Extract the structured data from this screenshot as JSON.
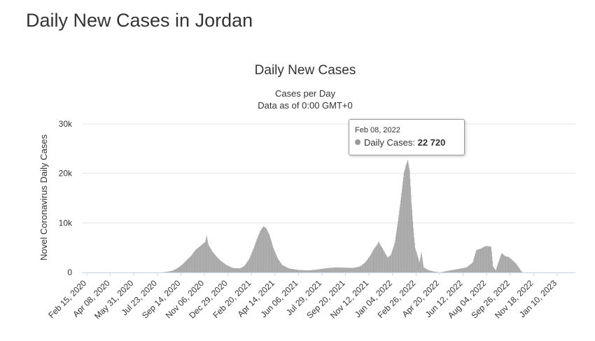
{
  "page": {
    "title": "Daily New Cases in Jordan"
  },
  "colors": {
    "bar": "#999999",
    "grid": "#e6e6e6",
    "axis": "#ccd6eb",
    "text": "#333333",
    "label": "#666666"
  },
  "tooltip": {
    "date": "Feb 08, 2022",
    "series": "Daily Cases:",
    "value": "22 720"
  },
  "chart_data": {
    "type": "bar",
    "title": "Daily New Cases",
    "subtitle_lines": [
      "Cases per Day",
      "Data as of 0:00 GMT+0"
    ],
    "ylabel": "Novel Coronavirus Daily Cases",
    "xlabel": "",
    "ylim": [
      0,
      30000
    ],
    "yticks": [
      0,
      10000,
      20000,
      30000
    ],
    "ytick_labels": [
      "0",
      "10k",
      "20k",
      "30k"
    ],
    "grid": true,
    "legend": "none",
    "x_range": [
      "2020-02-15",
      "2023-02-15"
    ],
    "xtick_labels": [
      "Feb 15, 2020",
      "Apr 08, 2020",
      "May 31, 2020",
      "Jul 23, 2020",
      "Sep 14, 2020",
      "Nov 06, 2020",
      "Dec 29, 2020",
      "Feb 20, 2021",
      "Apr 14, 2021",
      "Jun 06, 2021",
      "Jul 29, 2021",
      "Sep 20, 2021",
      "Nov 12, 2021",
      "Jan 04, 2022",
      "Feb 26, 2022",
      "Apr 20, 2022",
      "Jun 12, 2022",
      "Aug 04, 2022",
      "Sep 26, 2022",
      "Nov 18, 2022",
      "Jan 10, 2023"
    ],
    "series": [
      {
        "name": "Daily Cases",
        "points": [
          [
            "2020-08-15",
            50
          ],
          [
            "2020-08-25",
            150
          ],
          [
            "2020-09-05",
            400
          ],
          [
            "2020-09-15",
            900
          ],
          [
            "2020-09-25",
            1600
          ],
          [
            "2020-10-05",
            2500
          ],
          [
            "2020-10-15",
            3400
          ],
          [
            "2020-10-25",
            4600
          ],
          [
            "2020-11-05",
            5400
          ],
          [
            "2020-11-10",
            5800
          ],
          [
            "2020-11-15",
            6200
          ],
          [
            "2020-11-18",
            7500
          ],
          [
            "2020-11-22",
            5600
          ],
          [
            "2020-12-01",
            4200
          ],
          [
            "2020-12-10",
            3200
          ],
          [
            "2020-12-20",
            2300
          ],
          [
            "2021-01-01",
            1500
          ],
          [
            "2021-01-15",
            900
          ],
          [
            "2021-01-31",
            800
          ],
          [
            "2021-02-10",
            1300
          ],
          [
            "2021-02-20",
            2600
          ],
          [
            "2021-03-01",
            4500
          ],
          [
            "2021-03-10",
            6800
          ],
          [
            "2021-03-18",
            8500
          ],
          [
            "2021-03-24",
            9300
          ],
          [
            "2021-03-30",
            9000
          ],
          [
            "2021-04-07",
            7500
          ],
          [
            "2021-04-15",
            5000
          ],
          [
            "2021-04-25",
            2800
          ],
          [
            "2021-05-05",
            1500
          ],
          [
            "2021-05-20",
            800
          ],
          [
            "2021-06-10",
            500
          ],
          [
            "2021-07-01",
            400
          ],
          [
            "2021-07-20",
            550
          ],
          [
            "2021-08-10",
            850
          ],
          [
            "2021-09-01",
            1000
          ],
          [
            "2021-09-20",
            950
          ],
          [
            "2021-10-10",
            900
          ],
          [
            "2021-10-25",
            1200
          ],
          [
            "2021-11-05",
            2000
          ],
          [
            "2021-11-15",
            3200
          ],
          [
            "2021-11-25",
            4800
          ],
          [
            "2021-12-01",
            5500
          ],
          [
            "2021-12-05",
            6200
          ],
          [
            "2021-12-15",
            4600
          ],
          [
            "2021-12-25",
            3000
          ],
          [
            "2022-01-01",
            3500
          ],
          [
            "2022-01-10",
            6000
          ],
          [
            "2022-01-18",
            11000
          ],
          [
            "2022-01-25",
            16000
          ],
          [
            "2022-01-30",
            20000
          ],
          [
            "2022-02-03",
            21500
          ],
          [
            "2022-02-08",
            22720
          ],
          [
            "2022-02-12",
            20500
          ],
          [
            "2022-02-16",
            14000
          ],
          [
            "2022-02-20",
            9000
          ],
          [
            "2022-02-24",
            5000
          ],
          [
            "2022-03-01",
            3500
          ],
          [
            "2022-03-06",
            2000
          ],
          [
            "2022-03-10",
            4200
          ],
          [
            "2022-03-15",
            1000
          ],
          [
            "2022-03-25",
            500
          ],
          [
            "2022-04-05",
            200
          ],
          [
            "2022-04-20",
            0
          ],
          [
            "2022-06-18",
            1000
          ],
          [
            "2022-07-02",
            2000
          ],
          [
            "2022-07-10",
            4500
          ],
          [
            "2022-07-20",
            4800
          ],
          [
            "2022-07-30",
            5300
          ],
          [
            "2022-08-06",
            5300
          ],
          [
            "2022-08-12",
            5200
          ],
          [
            "2022-08-16",
            1300
          ],
          [
            "2022-08-22",
            400
          ],
          [
            "2022-09-04",
            3900
          ],
          [
            "2022-09-12",
            3300
          ],
          [
            "2022-09-20",
            3100
          ],
          [
            "2022-09-28",
            2500
          ],
          [
            "2022-10-06",
            1800
          ],
          [
            "2022-10-20",
            0
          ]
        ]
      }
    ]
  }
}
